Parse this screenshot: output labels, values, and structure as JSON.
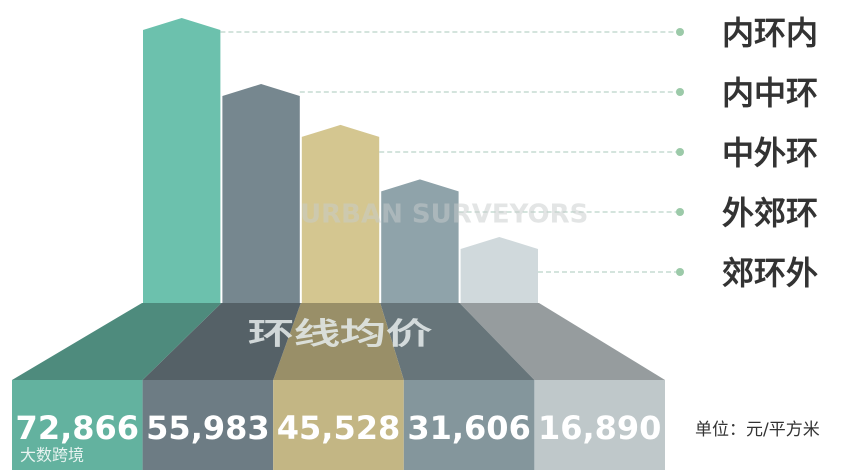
{
  "chart_data": {
    "type": "bar",
    "title": "环线均价",
    "categories": [
      "内环内",
      "内中环",
      "中外环",
      "外郊环",
      "郊环外"
    ],
    "values": [
      72866,
      55983,
      45528,
      31606,
      16890
    ],
    "value_labels": [
      "72,866",
      "55,983",
      "45,528",
      "31,606",
      "16,890"
    ],
    "colors": [
      "#6cc1ad",
      "#76878f",
      "#d4c690",
      "#8fa3aa",
      "#d0d9dc"
    ],
    "unit": "单位：元/平方米",
    "watermarks": [
      "URBAN SURVEYORS",
      "大数跨境"
    ]
  }
}
